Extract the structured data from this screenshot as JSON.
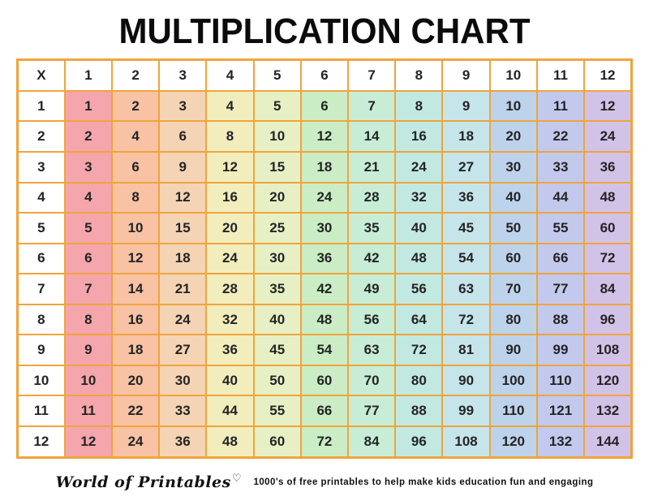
{
  "page": {
    "background": "#FFFFFF"
  },
  "title": "MULTIPLICATION CHART",
  "table": {
    "corner_label": "X",
    "column_headers": [
      "1",
      "2",
      "3",
      "4",
      "5",
      "6",
      "7",
      "8",
      "9",
      "10",
      "11",
      "12"
    ],
    "row_headers": [
      "1",
      "2",
      "3",
      "4",
      "5",
      "6",
      "7",
      "8",
      "9",
      "10",
      "11",
      "12"
    ],
    "rows": [
      [
        1,
        2,
        3,
        4,
        5,
        6,
        7,
        8,
        9,
        10,
        11,
        12
      ],
      [
        2,
        4,
        6,
        8,
        10,
        12,
        14,
        16,
        18,
        20,
        22,
        24
      ],
      [
        3,
        6,
        9,
        12,
        15,
        18,
        21,
        24,
        27,
        30,
        33,
        36
      ],
      [
        4,
        8,
        12,
        16,
        20,
        24,
        28,
        32,
        36,
        40,
        44,
        48
      ],
      [
        5,
        10,
        15,
        20,
        25,
        30,
        35,
        40,
        45,
        50,
        55,
        60
      ],
      [
        6,
        12,
        18,
        24,
        30,
        36,
        42,
        48,
        54,
        60,
        66,
        72
      ],
      [
        7,
        14,
        21,
        28,
        35,
        42,
        49,
        56,
        63,
        70,
        77,
        84
      ],
      [
        8,
        16,
        24,
        32,
        40,
        48,
        56,
        64,
        72,
        80,
        88,
        96
      ],
      [
        9,
        18,
        27,
        36,
        45,
        54,
        63,
        72,
        81,
        90,
        99,
        108
      ],
      [
        10,
        20,
        30,
        40,
        50,
        60,
        70,
        80,
        90,
        100,
        110,
        120
      ],
      [
        11,
        22,
        33,
        44,
        55,
        66,
        77,
        88,
        99,
        110,
        121,
        132
      ],
      [
        12,
        24,
        36,
        48,
        60,
        72,
        84,
        96,
        108,
        120,
        132,
        144
      ]
    ],
    "column_colors": [
      "#F4A6AC",
      "#F8C2A4",
      "#F4D4B4",
      "#F2EDBD",
      "#E7F0C4",
      "#CBEDC5",
      "#C7EDD7",
      "#C2E9E1",
      "#C6E5EB",
      "#BDD3EB",
      "#C2C9EC",
      "#D1C2E8"
    ],
    "border_color": "#F0A43C",
    "header_background": "#FFFFFF",
    "text_color": "#242424"
  },
  "footer": {
    "brand": "World of Printables",
    "heart_icon": "♡",
    "tagline": "1000's of free printables to help make kids education fun and engaging"
  }
}
